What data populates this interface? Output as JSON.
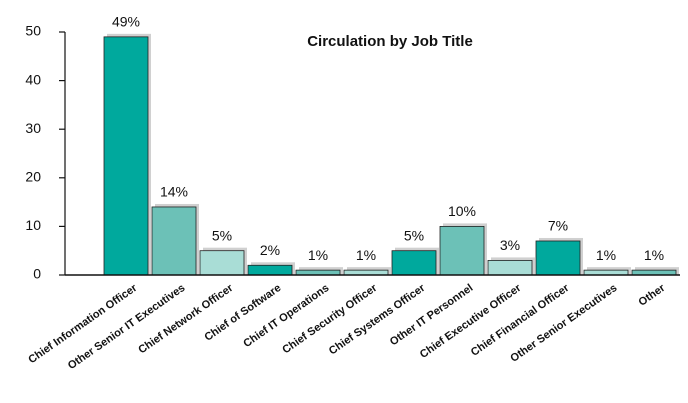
{
  "chart_data": {
    "type": "bar",
    "title": "Circulation by Job Title",
    "categories": [
      "Chief Information Officer",
      "Other Senior IT Executives",
      "Chief Network Officer",
      "Chief of Software",
      "Chief IT Operations",
      "Chief Security Officer",
      "Chief Systems Officer",
      "Other IT Personnel",
      "Chief Executive Officer",
      "Chief Financial Officer",
      "Other Senior Executives",
      "Other"
    ],
    "values": [
      49,
      14,
      5,
      2,
      1,
      1,
      5,
      10,
      3,
      7,
      1,
      1
    ],
    "value_labels": [
      "49%",
      "14%",
      "5%",
      "2%",
      "1%",
      "1%",
      "5%",
      "10%",
      "3%",
      "7%",
      "1%",
      "1%"
    ],
    "colors": [
      "#00a99d",
      "#6cc1b7",
      "#a9ddd6",
      "#00a99d",
      "#6cc1b7",
      "#a9ddd6",
      "#00a99d",
      "#6cc1b7",
      "#a9ddd6",
      "#00a99d",
      "#a9ddd6",
      "#6cc1b7"
    ],
    "ylim": [
      0,
      50
    ],
    "yticks": [
      0,
      10,
      20,
      30,
      40,
      50
    ],
    "grid": false
  }
}
